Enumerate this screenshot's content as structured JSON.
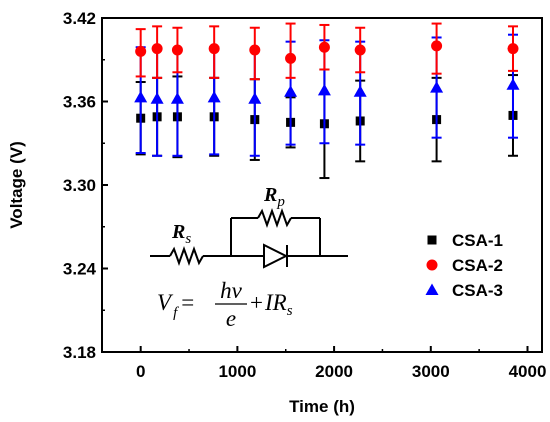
{
  "chart_data": {
    "type": "scatter",
    "xlabel": "Time (h)",
    "ylabel": "Voltage (V)",
    "xlim": [
      -400,
      4150
    ],
    "ylim": [
      3.18,
      3.42
    ],
    "xticks": [
      "0",
      "1000",
      "2000",
      "3000",
      "4000"
    ],
    "yticks": [
      "3.18",
      "3.24",
      "3.30",
      "3.36",
      "3.42"
    ],
    "legend_position": "right",
    "series": [
      {
        "name": "CSA-1",
        "marker": "square",
        "color": "#000000",
        "points": [
          {
            "x": 0,
            "y": 3.348,
            "err_low": 0.026,
            "err_high": 0.026
          },
          {
            "x": 170,
            "y": 3.349,
            "err_low": 0.028,
            "err_high": 0.028
          },
          {
            "x": 380,
            "y": 3.349,
            "err_low": 0.029,
            "err_high": 0.029
          },
          {
            "x": 760,
            "y": 3.349,
            "err_low": 0.028,
            "err_high": 0.028
          },
          {
            "x": 1180,
            "y": 3.347,
            "err_low": 0.029,
            "err_high": 0.029
          },
          {
            "x": 1550,
            "y": 3.345,
            "err_low": 0.018,
            "err_high": 0.018
          },
          {
            "x": 1900,
            "y": 3.344,
            "err_low": 0.039,
            "err_high": 0.039
          },
          {
            "x": 2270,
            "y": 3.346,
            "err_low": 0.029,
            "err_high": 0.029
          },
          {
            "x": 3060,
            "y": 3.347,
            "err_low": 0.03,
            "err_high": 0.03
          },
          {
            "x": 3850,
            "y": 3.35,
            "err_low": 0.029,
            "err_high": 0.029
          }
        ]
      },
      {
        "name": "CSA-2",
        "marker": "circle",
        "color": "#ff0000",
        "points": [
          {
            "x": 0,
            "y": 3.396,
            "err_low": 0.018,
            "err_high": 0.016
          },
          {
            "x": 170,
            "y": 3.398,
            "err_low": 0.021,
            "err_high": 0.016
          },
          {
            "x": 380,
            "y": 3.397,
            "err_low": 0.016,
            "err_high": 0.016
          },
          {
            "x": 760,
            "y": 3.398,
            "err_low": 0.021,
            "err_high": 0.016
          },
          {
            "x": 1180,
            "y": 3.397,
            "err_low": 0.021,
            "err_high": 0.016
          },
          {
            "x": 1550,
            "y": 3.391,
            "err_low": 0.014,
            "err_high": 0.025
          },
          {
            "x": 1900,
            "y": 3.399,
            "err_low": 0.016,
            "err_high": 0.016
          },
          {
            "x": 2270,
            "y": 3.397,
            "err_low": 0.016,
            "err_high": 0.016
          },
          {
            "x": 3060,
            "y": 3.4,
            "err_low": 0.02,
            "err_high": 0.016
          },
          {
            "x": 3850,
            "y": 3.398,
            "err_low": 0.016,
            "err_high": 0.016
          }
        ]
      },
      {
        "name": "CSA-3",
        "marker": "triangle",
        "color": "#0000ff",
        "points": [
          {
            "x": 0,
            "y": 3.363,
            "err_low": 0.04,
            "err_high": 0.036
          },
          {
            "x": 170,
            "y": 3.362,
            "err_low": 0.041,
            "err_high": 0.036
          },
          {
            "x": 380,
            "y": 3.362,
            "err_low": 0.041,
            "err_high": 0.036
          },
          {
            "x": 760,
            "y": 3.363,
            "err_low": 0.041,
            "err_high": 0.036
          },
          {
            "x": 1180,
            "y": 3.362,
            "err_low": 0.041,
            "err_high": 0.036
          },
          {
            "x": 1550,
            "y": 3.367,
            "err_low": 0.038,
            "err_high": 0.036
          },
          {
            "x": 1900,
            "y": 3.368,
            "err_low": 0.038,
            "err_high": 0.036
          },
          {
            "x": 2270,
            "y": 3.367,
            "err_low": 0.038,
            "err_high": 0.036
          },
          {
            "x": 3060,
            "y": 3.37,
            "err_low": 0.036,
            "err_high": 0.036
          },
          {
            "x": 3850,
            "y": 3.372,
            "err_low": 0.038,
            "err_high": 0.036
          }
        ]
      }
    ],
    "inset": {
      "label_rs_main": "R",
      "label_rs_sub": "s",
      "label_rp_main": "R",
      "label_rp_sub": "p",
      "formula_v": "V",
      "formula_f": "f",
      "formula_eq": "=",
      "formula_num": "hv",
      "formula_den": "e",
      "formula_plus": "+",
      "formula_ir": "IR",
      "formula_s": "s"
    }
  }
}
